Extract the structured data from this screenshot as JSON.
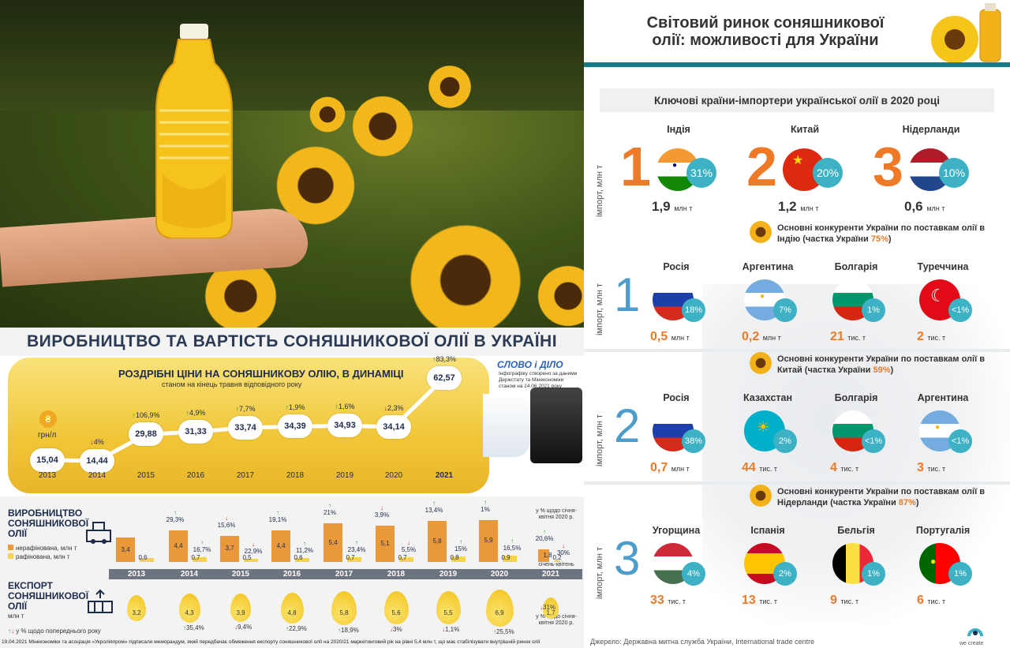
{
  "left": {
    "title": "ВИРОБНИЦТВО ТА ВАРТІСТЬ СОНЯШНИКОВОЇ ОЛІЇ В УКРАЇНІ",
    "logo": "СЛОВО і ДІЛО",
    "logo_note": "Інфографіку створено за даними Держстату та Мінекономіки станом на 24.06.2021 року",
    "unit_label": "грн/л",
    "coin_glyph": "₴",
    "production_title": "ВИРОБНИЦТВО СОНЯШНИКОВОЇ ОЛІЇ",
    "legend_unrefined": "нерафінована, млн т",
    "legend_refined": "рафінована, млн т",
    "export_title": "ЕКСПОРТ СОНЯШНИКОВОЇ ОЛІЇ",
    "export_unit": "млн т",
    "export_note": "у % щодо попереднього року",
    "prod_note_2021": "у % щодо січня-квітня 2020 р.",
    "prod_sub_2021": "січень-квітень",
    "exp_note_2021": "у % щодо січня-квітня 2020 р.",
    "footer": "19.04.2021 Мінекономіки та асоціація «Укроліяпром» підписали меморандум, який передбачає обмеження експорту соняшникової олії на 2020/21 маркетинговий рік на рівні 5,4 млн т, що має стабілізувати внутрішній ринок олії"
  },
  "chart_data": [
    {
      "type": "line",
      "title": "РОЗДРІБНІ ЦІНИ НА СОНЯШНИКОВУ ОЛІЮ, В ДИНАМІЦІ",
      "subtitle": "станом на кінець травня відповідного року",
      "ylabel": "грн/л",
      "x": [
        "2013",
        "2014",
        "2015",
        "2016",
        "2017",
        "2018",
        "2019",
        "2020",
        "2021"
      ],
      "y": [
        15.04,
        14.44,
        29.88,
        31.33,
        33.74,
        34.39,
        34.93,
        34.14,
        62.57
      ],
      "labels": [
        "15,04",
        "14,44",
        "29,88",
        "31,33",
        "33,74",
        "34,39",
        "34,93",
        "34,14",
        "62,57"
      ],
      "changes": [
        "",
        "4%",
        "106,9%",
        "4,9%",
        "7,7%",
        "1,9%",
        "1,6%",
        "2,3%",
        "83,3%"
      ],
      "change_dir": [
        "",
        "down",
        "up",
        "up",
        "up",
        "up",
        "up",
        "down",
        "up"
      ]
    },
    {
      "type": "bar",
      "title": "ВИРОБНИЦТВО СОНЯШНИКОВОЇ ОЛІЇ",
      "categories": [
        "2013",
        "2014",
        "2015",
        "2016",
        "2017",
        "2018",
        "2019",
        "2020",
        "2021"
      ],
      "series": [
        {
          "name": "нерафінована, млн т",
          "values": [
            3.4,
            4.4,
            3.7,
            4.4,
            5.4,
            5.1,
            5.8,
            5.9,
            1.8
          ],
          "labels": [
            "3,4",
            "4,4",
            "3,7",
            "4,4",
            "5,4",
            "5,1",
            "5,8",
            "5,9",
            "1,8"
          ],
          "changes": [
            "",
            "29,3%",
            "15,6%",
            "19,1%",
            "21%",
            "3,9%",
            "13,4%",
            "1%",
            "20,6%"
          ],
          "change_dir": [
            "",
            "up",
            "down",
            "up",
            "up",
            "down",
            "up",
            "up",
            "up"
          ]
        },
        {
          "name": "рафінована, млн т",
          "values": [
            0.6,
            0.7,
            0.5,
            0.6,
            0.7,
            0.7,
            0.8,
            0.9,
            0.2
          ],
          "labels": [
            "0,6",
            "0,7",
            "0,5",
            "0,6",
            "0,7",
            "0,7",
            "0,8",
            "0,9",
            "0,2"
          ],
          "changes": [
            "",
            "16,7%",
            "22,9%",
            "11,2%",
            "23,4%",
            "5,5%",
            "15%",
            "16,5%",
            "30%"
          ],
          "change_dir": [
            "",
            "up",
            "down",
            "up",
            "up",
            "down",
            "up",
            "up",
            "down"
          ]
        }
      ]
    },
    {
      "type": "bar",
      "title": "ЕКСПОРТ СОНЯШНИКОВОЇ ОЛІЇ",
      "ylabel": "млн т",
      "categories": [
        "2013",
        "2014",
        "2015",
        "2016",
        "2017",
        "2018",
        "2019",
        "2020",
        "2021"
      ],
      "values": [
        3.2,
        4.3,
        3.9,
        4.8,
        5.8,
        5.6,
        5.5,
        6.9,
        1.7
      ],
      "labels": [
        "3,2",
        "4,3",
        "3,9",
        "4,8",
        "5,8",
        "5,6",
        "5,5",
        "6,9",
        "1,7"
      ],
      "changes": [
        "",
        "35,4%",
        "9,4%",
        "22,9%",
        "18,9%",
        "3%",
        "1,1%",
        "25,5%",
        "31%"
      ],
      "change_dir": [
        "",
        "up",
        "down",
        "up",
        "up",
        "down",
        "down",
        "up",
        "down"
      ]
    }
  ],
  "right": {
    "title_line1": "Світовий ринок соняшникової",
    "title_line2": "олії: можливості для України",
    "section_title": "Ключові країни-імпортери української олії в 2020 році",
    "axis_label": "імпорт, млн т",
    "importers": [
      {
        "rank": "1",
        "country": "Індія",
        "pct": "31%",
        "value": "1,9",
        "unit": "млн т",
        "flag": "india"
      },
      {
        "rank": "2",
        "country": "Китай",
        "pct": "20%",
        "value": "1,2",
        "unit": "млн т",
        "flag": "china"
      },
      {
        "rank": "3",
        "country": "Нідерланди",
        "pct": "10%",
        "value": "0,6",
        "unit": "млн т",
        "flag": "netherlands"
      }
    ],
    "groups": [
      {
        "rank": "1",
        "title": "Основні конкуренти України по поставкам олії в Індію (частка України",
        "share": "75%",
        "items": [
          {
            "country": "Росія",
            "pct": "18%",
            "value": "0,5",
            "unit": "млн т",
            "flag": "russia"
          },
          {
            "country": "Аргентина",
            "pct": "7%",
            "value": "0,2",
            "unit": "млн т",
            "flag": "argentina"
          },
          {
            "country": "Болгарія",
            "pct": "1%",
            "value": "21",
            "unit": "тис. т",
            "flag": "bulgaria"
          },
          {
            "country": "Туреччина",
            "pct": "<1%",
            "value": "2",
            "unit": "тис. т",
            "flag": "turkey"
          }
        ]
      },
      {
        "rank": "2",
        "title": "Основні конкуренти України по поставкам олії в Китай (частка України",
        "share": "59%",
        "items": [
          {
            "country": "Росія",
            "pct": "38%",
            "value": "0,7",
            "unit": "млн т",
            "flag": "russia"
          },
          {
            "country": "Казахстан",
            "pct": "2%",
            "value": "44",
            "unit": "тис. т",
            "flag": "kazakhstan"
          },
          {
            "country": "Болгарія",
            "pct": "<1%",
            "value": "4",
            "unit": "тис. т",
            "flag": "bulgaria"
          },
          {
            "country": "Аргентина",
            "pct": "<1%",
            "value": "3",
            "unit": "тис. т",
            "flag": "argentina"
          }
        ]
      },
      {
        "rank": "3",
        "title": "Основні конкуренти України по поставкам олії в Нідерланди (частка України",
        "share": "87%",
        "items": [
          {
            "country": "Угорщина",
            "pct": "4%",
            "value": "33",
            "unit": "тис. т",
            "flag": "hungary"
          },
          {
            "country": "Іспанія",
            "pct": "2%",
            "value": "13",
            "unit": "тис. т",
            "flag": "spain"
          },
          {
            "country": "Бельгія",
            "pct": "1%",
            "value": "9",
            "unit": "тис. т",
            "flag": "belgium"
          },
          {
            "country": "Португалія",
            "pct": "1%",
            "value": "6",
            "unit": "тис. т",
            "flag": "portugal"
          }
        ]
      }
    ],
    "source": "Джерело: Державна митна служба України, International trade centre",
    "brand": "we create"
  },
  "colors": {
    "orange": "#ee7a28",
    "teal": "#3fb1c4",
    "navy": "#1d2b4d",
    "up": "#2e9a3a",
    "down": "#d32a2a"
  }
}
